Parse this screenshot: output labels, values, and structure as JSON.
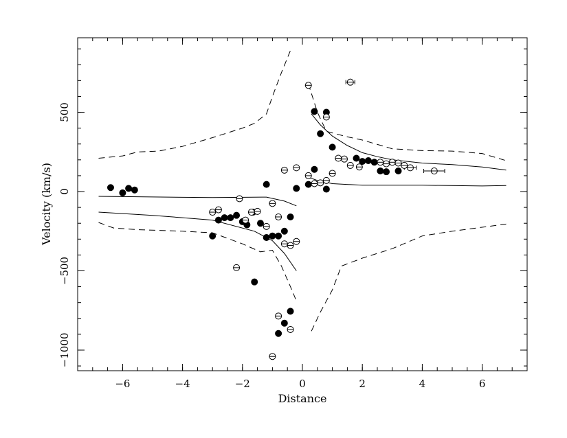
{
  "chart_data": {
    "type": "scatter",
    "title": "",
    "xlabel": "Distance",
    "ylabel": "Velocity (km/s)",
    "xlim": [
      -7.5,
      7.5
    ],
    "ylim": [
      -1130,
      970
    ],
    "x_major_ticks": [
      -6,
      -4,
      -2,
      0,
      2,
      4,
      6
    ],
    "x_major_labels": [
      "−6",
      "−4",
      "−2",
      "0",
      "2",
      "4",
      "6"
    ],
    "x_minor_step": 0.5,
    "y_major_ticks": [
      -1000,
      -500,
      0,
      500
    ],
    "y_major_labels": [
      "−1000",
      "−500",
      "0",
      "500"
    ],
    "y_minor_step": 100,
    "grid": false,
    "series": [
      {
        "marker": "filled-circle",
        "points": [
          [
            -6.4,
            25
          ],
          [
            -6.0,
            -8
          ],
          [
            -5.8,
            20
          ],
          [
            -5.6,
            10
          ],
          [
            -3.0,
            -280
          ],
          [
            -2.8,
            -180
          ],
          [
            -2.6,
            -165
          ],
          [
            -2.4,
            -165
          ],
          [
            -2.2,
            -150
          ],
          [
            -2.0,
            -190
          ],
          [
            -1.85,
            -210
          ],
          [
            -1.65,
            -130
          ],
          [
            -1.4,
            -200
          ],
          [
            -1.2,
            -290
          ],
          [
            -1.2,
            45
          ],
          [
            -1.0,
            -280
          ],
          [
            -0.8,
            -280
          ],
          [
            -0.6,
            -250
          ],
          [
            -0.4,
            -160
          ],
          [
            -0.2,
            20
          ],
          [
            -1.6,
            -570
          ],
          [
            -0.4,
            -755
          ],
          [
            -0.6,
            -830
          ],
          [
            -0.8,
            -895
          ],
          [
            0.2,
            45
          ],
          [
            0.4,
            140
          ],
          [
            0.4,
            505
          ],
          [
            0.8,
            500
          ],
          [
            0.6,
            365
          ],
          [
            1.0,
            280
          ],
          [
            0.8,
            15
          ],
          [
            1.8,
            210
          ],
          [
            2.0,
            190
          ],
          [
            2.2,
            195
          ],
          [
            2.4,
            185
          ],
          [
            2.6,
            130
          ],
          [
            2.8,
            125
          ],
          [
            3.2,
            130
          ]
        ],
        "xerr": []
      },
      {
        "marker": "open-circle",
        "points": [
          [
            -3.0,
            -130
          ],
          [
            -2.8,
            -115
          ],
          [
            -2.2,
            -480
          ],
          [
            -2.1,
            -45
          ],
          [
            -1.9,
            -180
          ],
          [
            -1.7,
            -130
          ],
          [
            -1.5,
            -125
          ],
          [
            -1.2,
            -220
          ],
          [
            -1.0,
            -75
          ],
          [
            -1.0,
            -1040
          ],
          [
            -0.8,
            -160
          ],
          [
            -0.8,
            -785
          ],
          [
            -0.6,
            135
          ],
          [
            -0.6,
            -330
          ],
          [
            -0.4,
            -340
          ],
          [
            -0.4,
            -870
          ],
          [
            -0.2,
            150
          ],
          [
            -0.2,
            -315
          ],
          [
            0.2,
            670
          ],
          [
            0.2,
            100
          ],
          [
            0.4,
            50
          ],
          [
            0.6,
            55
          ],
          [
            0.8,
            470
          ],
          [
            0.8,
            70
          ],
          [
            1.0,
            115
          ],
          [
            1.2,
            210
          ],
          [
            1.4,
            205
          ],
          [
            1.6,
            690
          ],
          [
            1.6,
            165
          ],
          [
            1.9,
            155
          ],
          [
            2.6,
            185
          ],
          [
            2.8,
            175
          ],
          [
            3.0,
            185
          ],
          [
            3.2,
            180
          ],
          [
            3.4,
            165
          ],
          [
            3.6,
            150
          ],
          [
            4.4,
            130
          ]
        ],
        "xerr": [
          [
            1.6,
            690,
            0.15
          ],
          [
            3.6,
            150,
            0.2
          ],
          [
            4.4,
            130,
            0.35
          ]
        ]
      }
    ],
    "curves": [
      {
        "style": "solid",
        "points": [
          [
            -6.8,
            -30
          ],
          [
            -3.0,
            -38
          ],
          [
            -1.2,
            -35
          ],
          [
            -0.6,
            -60
          ],
          [
            -0.2,
            -90
          ]
        ]
      },
      {
        "style": "solid",
        "points": [
          [
            -6.8,
            -130
          ],
          [
            -5.0,
            -150
          ],
          [
            -4.0,
            -165
          ],
          [
            -3.0,
            -180
          ],
          [
            -1.6,
            -250
          ],
          [
            -1.0,
            -310
          ],
          [
            -0.6,
            -390
          ],
          [
            -0.2,
            -500
          ]
        ]
      },
      {
        "style": "solid",
        "points": [
          [
            0.2,
            90
          ],
          [
            0.5,
            70
          ],
          [
            1.0,
            50
          ],
          [
            2.0,
            40
          ],
          [
            4.0,
            40
          ],
          [
            6.0,
            35
          ],
          [
            6.8,
            38
          ]
        ]
      },
      {
        "style": "solid",
        "points": [
          [
            0.3,
            490
          ],
          [
            0.6,
            420
          ],
          [
            1.0,
            350
          ],
          [
            1.5,
            290
          ],
          [
            2.0,
            245
          ],
          [
            2.5,
            220
          ],
          [
            3.0,
            200
          ],
          [
            4.0,
            180
          ],
          [
            5.0,
            170
          ],
          [
            6.0,
            155
          ],
          [
            6.8,
            135
          ]
        ]
      },
      {
        "style": "dashed",
        "points": [
          [
            -6.8,
            210
          ],
          [
            -6.0,
            225
          ],
          [
            -5.5,
            250
          ],
          [
            -4.8,
            255
          ],
          [
            -4.0,
            285
          ],
          [
            -3.0,
            340
          ],
          [
            -2.0,
            400
          ],
          [
            -1.6,
            430
          ],
          [
            -1.2,
            490
          ],
          [
            -1.0,
            600
          ],
          [
            -0.7,
            750
          ],
          [
            -0.4,
            890
          ]
        ]
      },
      {
        "style": "dashed",
        "points": [
          [
            -6.8,
            -195
          ],
          [
            -6.3,
            -230
          ],
          [
            -5.5,
            -240
          ],
          [
            -4.0,
            -250
          ],
          [
            -3.0,
            -260
          ],
          [
            -2.0,
            -330
          ],
          [
            -1.4,
            -380
          ],
          [
            -1.0,
            -370
          ],
          [
            -0.7,
            -470
          ],
          [
            -0.4,
            -600
          ],
          [
            -0.2,
            -690
          ]
        ]
      },
      {
        "style": "dashed",
        "points": [
          [
            0.2,
            680
          ],
          [
            0.5,
            500
          ],
          [
            0.8,
            380
          ],
          [
            1.0,
            370
          ],
          [
            1.5,
            345
          ],
          [
            2.0,
            325
          ],
          [
            3.0,
            270
          ],
          [
            4.0,
            258
          ],
          [
            5.0,
            255
          ],
          [
            6.0,
            240
          ],
          [
            6.8,
            195
          ]
        ]
      },
      {
        "style": "dashed",
        "points": [
          [
            0.3,
            -880
          ],
          [
            0.6,
            -760
          ],
          [
            1.0,
            -620
          ],
          [
            1.3,
            -470
          ],
          [
            2.0,
            -420
          ],
          [
            3.0,
            -360
          ],
          [
            4.0,
            -280
          ],
          [
            5.0,
            -250
          ],
          [
            6.0,
            -225
          ],
          [
            6.8,
            -205
          ]
        ]
      }
    ]
  }
}
